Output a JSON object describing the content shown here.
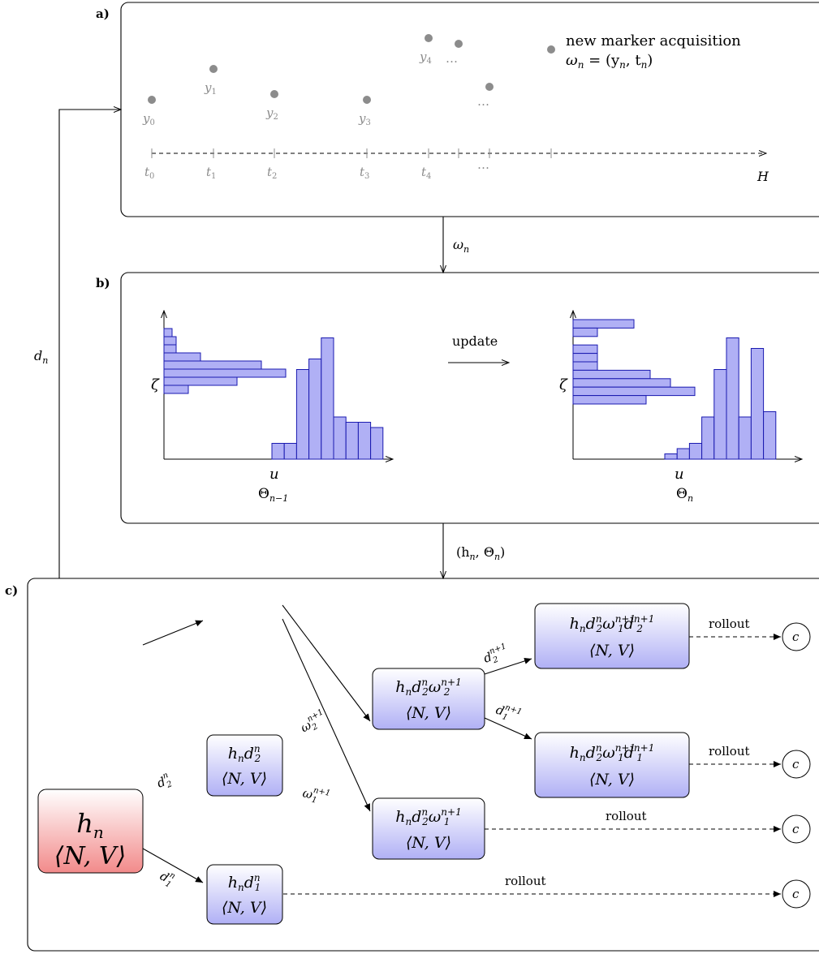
{
  "panel_a": {
    "label": "a)",
    "legend_line1": "new marker acquisition",
    "legend_line2": "ω",
    "legend_line2_sub": "n",
    "legend_line2_rest": " = (y",
    "legend_line2_sub2": "n",
    "legend_line2_rest2": ", t",
    "legend_line2_sub3": "n",
    "legend_line2_end": ")",
    "points": [
      {
        "y": "y",
        "y_sub": "0",
        "t": "t",
        "t_sub": "0"
      },
      {
        "y": "y",
        "y_sub": "1",
        "t": "t",
        "t_sub": "1"
      },
      {
        "y": "y",
        "y_sub": "2",
        "t": "t",
        "t_sub": "2"
      },
      {
        "y": "y",
        "y_sub": "3",
        "t": "t",
        "t_sub": "3"
      },
      {
        "y": "y",
        "y_sub": "4",
        "t": "t",
        "t_sub": "4"
      }
    ],
    "ellipsis": "…",
    "horizon_label": "H"
  },
  "arrow_ab_label": "ω",
  "arrow_ab_sub": "n",
  "arrow_bc_label": "(h",
  "arrow_bc_sub": "n",
  "arrow_bc_rest": ", Θ",
  "arrow_bc_sub2": "n",
  "arrow_bc_end": ")",
  "feedback_label": "d",
  "feedback_sub": "n",
  "panel_b": {
    "label": "b)",
    "update_label": "update",
    "left": {
      "zeta": "ζ",
      "u": "u",
      "theta": "Θ",
      "theta_sub": "n−1",
      "zeta_hist": [
        2,
        3,
        3,
        9,
        24,
        30,
        18,
        6
      ],
      "u_hist": [
        3,
        3,
        17,
        19,
        23,
        8,
        7,
        7,
        6
      ]
    },
    "right": {
      "zeta": "ζ",
      "u": "u",
      "theta": "Θ",
      "theta_sub": "n",
      "zeta_hist": [
        15,
        6,
        0,
        6,
        6,
        6,
        19,
        24,
        30,
        18
      ],
      "u_hist": [
        1,
        2,
        3,
        8,
        17,
        23,
        8,
        21,
        9
      ]
    }
  },
  "panel_c": {
    "label": "c)",
    "colors": {
      "root_top": "#ffffff",
      "root_bottom": "#f28a8a",
      "node_top": "#ffffff",
      "node_bottom": "#b0b0f5"
    },
    "nv": "⟨N, V⟩",
    "root": "h",
    "root_sub": "n",
    "rollout": "rollout",
    "terminal": "c"
  }
}
